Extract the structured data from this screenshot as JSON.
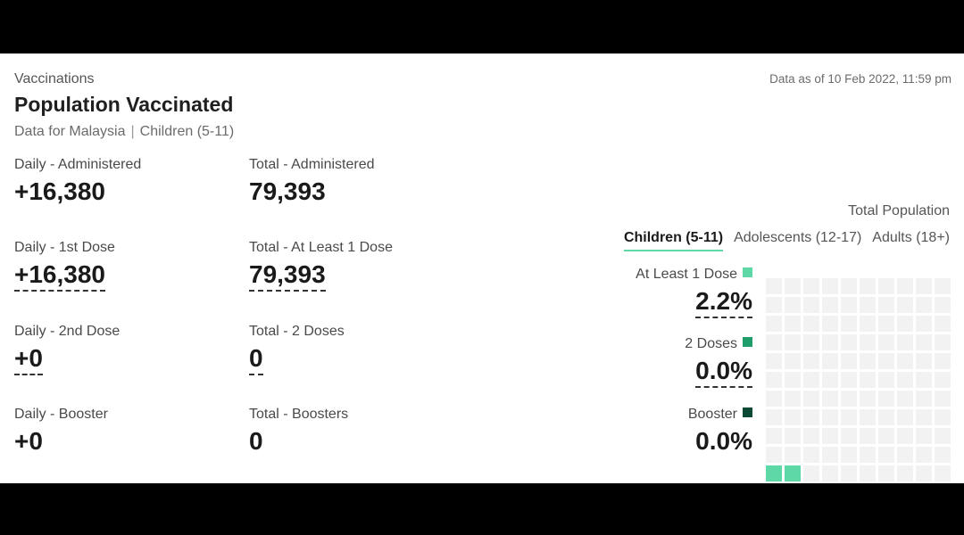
{
  "header": {
    "eyebrow": "Vaccinations",
    "title": "Population Vaccinated",
    "subtitle_country": "Data for Malaysia",
    "subtitle_separator": "|",
    "subtitle_group": "Children (5-11)",
    "as_of": "Data as of 10 Feb 2022, 11:59 pm"
  },
  "stats": [
    {
      "label": "Daily - Administered",
      "value": "+16,380",
      "dotted": false
    },
    {
      "label": "Total - Administered",
      "value": "79,393",
      "dotted": false
    },
    {
      "label": "Daily - 1st Dose",
      "value": "+16,380",
      "dotted": true
    },
    {
      "label": "Total - At Least 1 Dose",
      "value": "79,393",
      "dotted": true
    },
    {
      "label": "Daily - 2nd Dose",
      "value": "+0",
      "dotted": true
    },
    {
      "label": "Total - 2 Doses",
      "value": "0",
      "dotted": true
    },
    {
      "label": "Daily - Booster",
      "value": "+0",
      "dotted": false
    },
    {
      "label": "Total - Boosters",
      "value": "0",
      "dotted": false
    }
  ],
  "population": {
    "label": "Total Population",
    "tabs": [
      {
        "label": "Children (5-11)",
        "active": true
      },
      {
        "label": "Adolescents (12-17)",
        "active": false
      },
      {
        "label": "Adults (18+)",
        "active": false
      }
    ],
    "legend": [
      {
        "label": "At Least 1 Dose",
        "value": "2.2%",
        "color": "#5fd8a8",
        "dotted": true
      },
      {
        "label": "2 Doses",
        "value": "0.0%",
        "color": "#1f9d6b",
        "dotted": true
      },
      {
        "label": "Booster",
        "value": "0.0%",
        "color": "#0d4a36",
        "dotted": false
      }
    ],
    "waffle": {
      "total_cells": 110,
      "filled_cells": 2,
      "empty_color": "#f2f2f2",
      "fill_color": "#5fd8a8"
    }
  }
}
